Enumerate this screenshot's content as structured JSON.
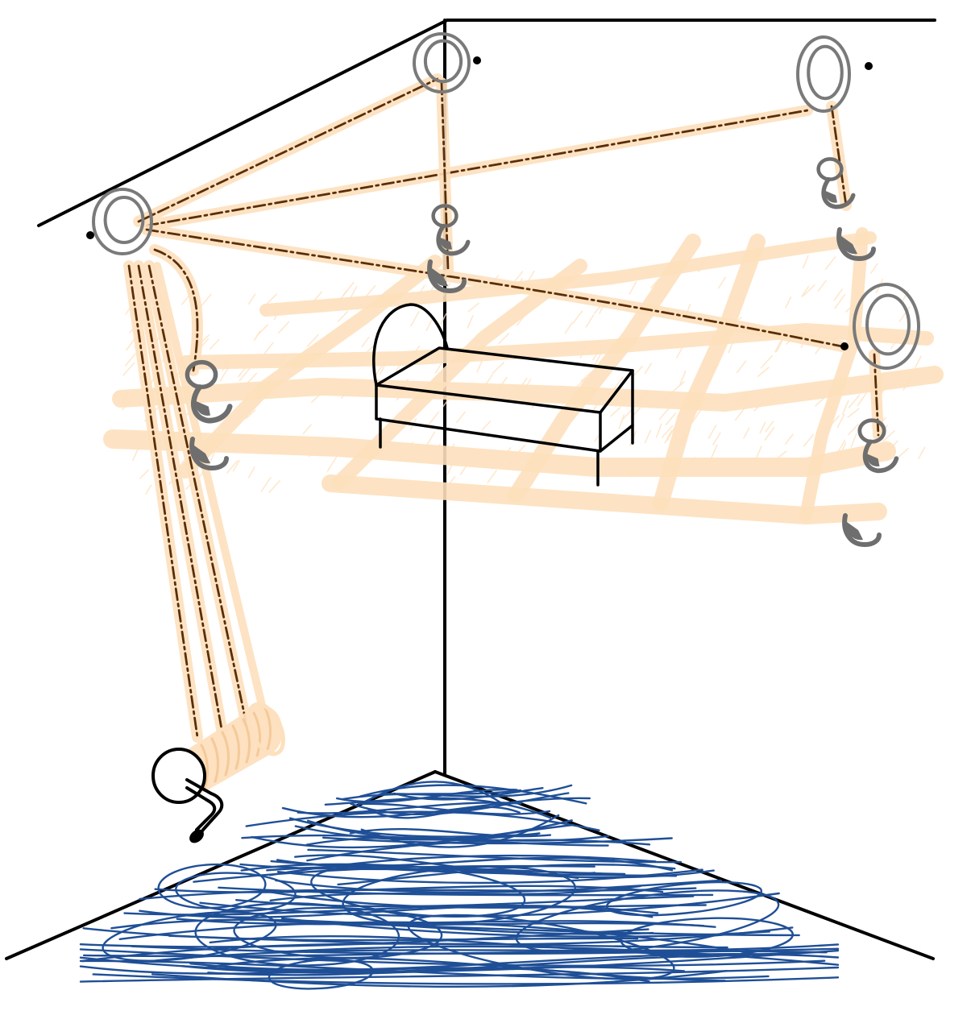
{
  "colors": {
    "background": "#ffffff",
    "wall_edge": "#000000",
    "rope": "#fde0bd",
    "rope_core": "#5a2e0a",
    "ring": "#7a7a7a",
    "hook": "#6e6e6e",
    "bed": "#000000",
    "floor_scribble": "#1f4f96"
  },
  "icons": {
    "ceiling_ring": "pulley-ring-icon",
    "hook": "hook-icon",
    "winch": "winch-drum-icon",
    "bed": "bed-icon"
  }
}
